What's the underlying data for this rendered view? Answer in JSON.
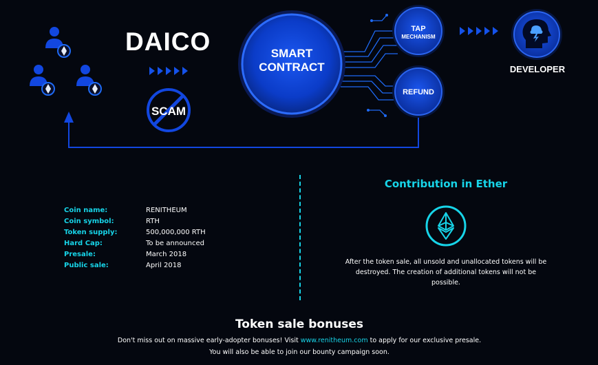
{
  "diagram": {
    "daico_label": "DAICO",
    "scam_label": "SCAM",
    "smart_contract_label": "SMART\nCONTRACT",
    "tap_label_line1": "TAP",
    "tap_label_line2": "MECHANISM",
    "refund_label": "REFUND",
    "developer_label": "DEVELOPER"
  },
  "coin_info": [
    {
      "key": "Coin name:",
      "value": "RENITHEUM"
    },
    {
      "key": "Coin symbol:",
      "value": "RTH"
    },
    {
      "key": "Token supply:",
      "value": "500,000,000 RTH"
    },
    {
      "key": "Hard Cap:",
      "value": "To be announced"
    },
    {
      "key": "Presale:",
      "value": "March 2018"
    },
    {
      "key": "Public sale:",
      "value": "April 2018"
    }
  ],
  "contribution": {
    "title": "Contribution in Ether",
    "text": "After the token sale, all unsold and unallocated tokens will be destroyed. The creation of additional tokens will not be possible."
  },
  "bonuses": {
    "title": "Token sale bonuses",
    "line1_before": "Don't miss out on massive early-adopter bonuses! Visit ",
    "line1_link": "www.renitheum.com",
    "line1_after": " to apply for our exclusive presale.",
    "line2": "You will also be able to join our bounty campaign soon."
  },
  "colors": {
    "accent": "#17d4e8",
    "blue": "#0b44d8",
    "background": "#04070f"
  }
}
